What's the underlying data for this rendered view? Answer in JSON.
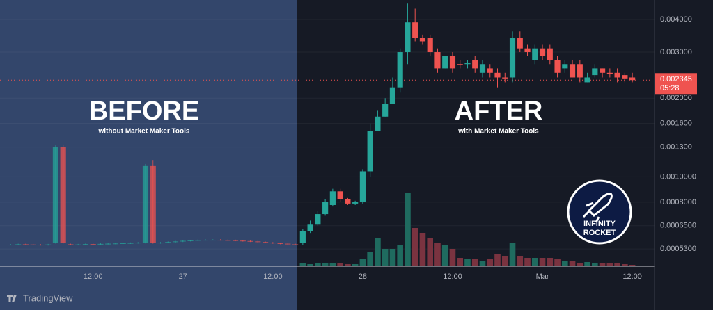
{
  "chart_data": {
    "type": "candlestick",
    "categories": [
      null,
      null,
      null,
      null,
      null,
      null,
      null,
      null,
      null,
      null,
      null,
      "12:00",
      null,
      null,
      null,
      null,
      null,
      null,
      null,
      null,
      null,
      null,
      null,
      "27",
      null,
      null,
      null,
      null,
      null,
      null,
      null,
      null,
      null,
      null,
      null,
      "12:00",
      null,
      null,
      null,
      null,
      null,
      null,
      null,
      null,
      null,
      null,
      null,
      "28",
      null,
      null,
      null,
      null,
      null,
      null,
      null,
      null,
      null,
      null,
      null,
      "12:00",
      null,
      null,
      null,
      null,
      null,
      null,
      null,
      null,
      null,
      null,
      null,
      "Mar",
      null,
      null,
      null,
      null,
      null,
      null,
      null,
      null,
      null,
      null,
      null,
      "12:00"
    ],
    "open": [
      0.00055,
      0.00055,
      0.000552,
      0.000551,
      0.00055,
      0.000549,
      0.00056,
      0.0013,
      0.000552,
      0.00055,
      0.000551,
      0.000553,
      0.000552,
      0.000554,
      0.000555,
      0.000556,
      0.000557,
      0.000558,
      0.00056,
      0.0011,
      0.000558,
      0.00056,
      0.000563,
      0.000566,
      0.000569,
      0.000571,
      0.000573,
      0.000574,
      0.000574,
      0.000573,
      0.000572,
      0.00057,
      0.000568,
      0.000566,
      0.000563,
      0.00056,
      0.000557,
      0.000555,
      0.000552,
      0.00056,
      0.00062,
      0.00066,
      0.00072,
      0.00078,
      0.00088,
      0.00082,
      0.00079,
      0.0008,
      0.00105,
      0.0015,
      0.0017,
      0.0019,
      0.0022,
      0.003,
      0.0039,
      0.0034,
      0.0034,
      0.003,
      0.0026,
      0.0029,
      0.0027,
      0.0027,
      0.0028,
      0.0025,
      0.0026,
      0.0025,
      0.0024,
      0.0024,
      0.0034,
      0.0031,
      0.0028,
      0.0031,
      0.0031,
      0.0028,
      0.0026,
      0.0027,
      0.0027,
      0.0023,
      0.00245,
      0.0026,
      0.0025,
      0.0025,
      0.00245,
      0.0024
    ],
    "high": [
      0.000553,
      0.000555,
      0.000555,
      0.000554,
      0.000553,
      0.000554,
      0.00132,
      0.00133,
      0.000555,
      0.000554,
      0.000556,
      0.000556,
      0.000557,
      0.000558,
      0.000559,
      0.00056,
      0.000561,
      0.000563,
      0.00112,
      0.00116,
      0.000563,
      0.000566,
      0.000569,
      0.000572,
      0.000574,
      0.000576,
      0.000577,
      0.000577,
      0.000577,
      0.000576,
      0.000575,
      0.000573,
      0.000571,
      0.000569,
      0.000566,
      0.000563,
      0.00056,
      0.000558,
      0.000555,
      0.00063,
      0.00068,
      0.00074,
      0.00082,
      0.0009,
      0.0009,
      0.00083,
      0.00081,
      0.00107,
      0.0016,
      0.0018,
      0.002,
      0.0024,
      0.0031,
      0.0046,
      0.0044,
      0.0035,
      0.0035,
      0.0031,
      0.0029,
      0.003,
      0.0028,
      0.0028,
      0.0029,
      0.0028,
      0.0027,
      0.0026,
      0.0025,
      0.0036,
      0.0036,
      0.0032,
      0.0032,
      0.0032,
      0.0032,
      0.0029,
      0.0028,
      0.0028,
      0.0028,
      0.0025,
      0.0027,
      0.0026,
      0.0026,
      0.0026,
      0.0025,
      0.0025
    ],
    "low": [
      0.000547,
      0.000547,
      0.000548,
      0.000547,
      0.000546,
      0.000546,
      0.000555,
      0.000555,
      0.000547,
      0.000547,
      0.000548,
      0.000549,
      0.000549,
      0.000551,
      0.000552,
      0.000553,
      0.000554,
      0.000555,
      0.000556,
      0.000555,
      0.000555,
      0.000557,
      0.00056,
      0.000563,
      0.000566,
      0.000568,
      0.00057,
      0.000571,
      0.00057,
      0.000569,
      0.000567,
      0.000565,
      0.000563,
      0.00056,
      0.000557,
      0.000554,
      0.000552,
      0.000549,
      0.000547,
      0.00055,
      0.00061,
      0.00065,
      0.00071,
      0.00077,
      0.0008,
      0.00078,
      0.00078,
      0.00079,
      0.001,
      0.0015,
      0.0017,
      0.0019,
      0.0021,
      0.0027,
      0.0033,
      0.0032,
      0.0029,
      0.0025,
      0.0026,
      0.0025,
      0.0026,
      0.0026,
      0.0025,
      0.0024,
      0.0024,
      0.0022,
      0.0023,
      0.0023,
      0.003,
      0.0029,
      0.0027,
      0.0028,
      0.0027,
      0.0024,
      0.0025,
      0.0024,
      0.0023,
      0.0023,
      0.0024,
      0.0024,
      0.0024,
      0.0023,
      0.0023,
      0.0023
    ],
    "close": [
      0.00055,
      0.000552,
      0.000551,
      0.00055,
      0.000549,
      0.000551,
      0.0013,
      0.00056,
      0.00055,
      0.000551,
      0.000553,
      0.000552,
      0.000554,
      0.000555,
      0.000556,
      0.000557,
      0.000558,
      0.00056,
      0.0011,
      0.000558,
      0.00056,
      0.000563,
      0.000566,
      0.000569,
      0.000571,
      0.000573,
      0.000574,
      0.000574,
      0.000573,
      0.000572,
      0.00057,
      0.000568,
      0.000566,
      0.000563,
      0.00056,
      0.000557,
      0.000555,
      0.000552,
      0.00055,
      0.00062,
      0.00066,
      0.00072,
      0.0008,
      0.00088,
      0.00082,
      0.00079,
      0.0008,
      0.00105,
      0.0015,
      0.0017,
      0.0019,
      0.0022,
      0.003,
      0.0039,
      0.0034,
      0.0033,
      0.003,
      0.0026,
      0.0029,
      0.0026,
      0.00268,
      0.00272,
      0.0026,
      0.0027,
      0.0025,
      0.0024,
      0.00238,
      0.0034,
      0.0031,
      0.003,
      0.0031,
      0.0029,
      0.0028,
      0.0025,
      0.0027,
      0.0024,
      0.0024,
      0.0024,
      0.0026,
      0.0025,
      0.00248,
      0.0024,
      0.00238,
      0.002345
    ],
    "volume": [
      0,
      0,
      0,
      0,
      0,
      0,
      0,
      0,
      0,
      0,
      0,
      0,
      0,
      0,
      0,
      0,
      0,
      0,
      0,
      0,
      0,
      0,
      0,
      0,
      0,
      0,
      0,
      0,
      0,
      0,
      0,
      0,
      0,
      0,
      0,
      0,
      0,
      0,
      0,
      5,
      3,
      4,
      5,
      4,
      4,
      3,
      3,
      10,
      20,
      40,
      25,
      25,
      30,
      105,
      55,
      48,
      40,
      33,
      30,
      25,
      12,
      10,
      10,
      8,
      10,
      18,
      15,
      33,
      15,
      12,
      12,
      12,
      12,
      10,
      8,
      8,
      5,
      6,
      5,
      5,
      5,
      4,
      3,
      2
    ],
    "colors": {
      "up": "#26a69a",
      "down": "#ef5350",
      "volume_up": "#1f6b5f",
      "volume_down": "#7a3340"
    },
    "log_scale": true,
    "ylim": [
      0.000455,
      0.00475
    ],
    "yticks": [
      {
        "value": 0.004,
        "label": "0.004000"
      },
      {
        "value": 0.003,
        "label": "0.003000"
      },
      {
        "value": 0.002,
        "label": "0.002000"
      },
      {
        "value": 0.0016,
        "label": "0.001600"
      },
      {
        "value": 0.0013,
        "label": "0.001300"
      },
      {
        "value": 0.001,
        "label": "0.0010000"
      },
      {
        "value": 0.0008,
        "label": "0.0008000"
      },
      {
        "value": 0.00065,
        "label": "0.0006500"
      },
      {
        "value": 0.00053,
        "label": "0.0005300"
      }
    ],
    "last_price": 0.002345,
    "countdown": "05:28",
    "annotations": {
      "before_title": "BEFORE",
      "before_subtitle": "without Market Maker Tools",
      "after_title": "AFTER",
      "after_subtitle": "with Market Maker Tools",
      "logo": [
        "INFINITY",
        "ROCKET"
      ],
      "brand": "TradingView"
    }
  }
}
